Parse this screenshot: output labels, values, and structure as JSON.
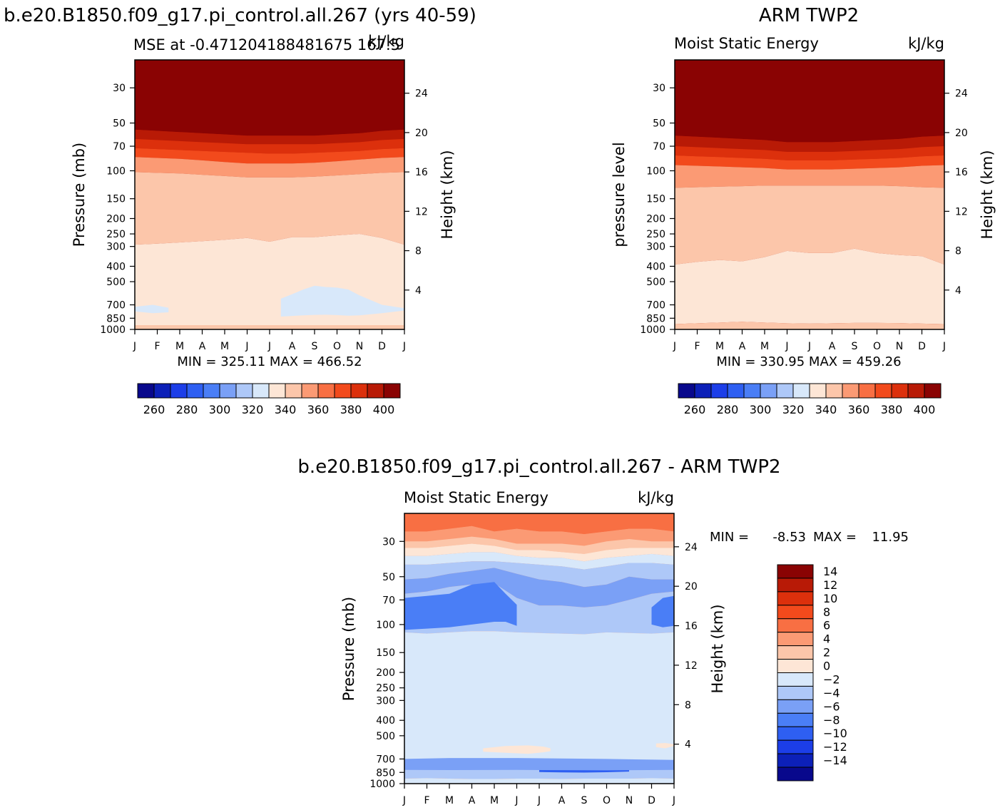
{
  "chart_data": [
    {
      "type": "heatmap",
      "title": "b.e20.B1850.f09_g17.pi_control.all.267 (yrs 40-59)",
      "subtitle_left": "MSE at -0.471204188481675 167.5",
      "subtitle_right": "kJ/kg",
      "ylabel": "Pressure (mb)",
      "ylabel_right": "Height (km)",
      "stats": "MIN = 325.11 MAX = 466.52",
      "months": [
        "J",
        "F",
        "M",
        "A",
        "M",
        "J",
        "J",
        "A",
        "S",
        "O",
        "N",
        "D",
        "J"
      ],
      "pressure_ticks": [
        "30",
        "50",
        "70",
        "100",
        "150",
        "200",
        "250",
        "300",
        "400",
        "500",
        "700",
        "850",
        "1000"
      ],
      "height_ticks": [
        "24",
        "20",
        "16",
        "12",
        "8",
        "4"
      ],
      "colorbar_ticks": [
        "260",
        "280",
        "300",
        "320",
        "340",
        "360",
        "380",
        "400"
      ],
      "colorbar_levels": [
        250,
        260,
        270,
        280,
        290,
        300,
        310,
        320,
        330,
        340,
        350,
        360,
        370,
        380,
        390,
        400,
        410
      ],
      "palette": [
        "#08088c",
        "#0c20b8",
        "#1c3ee8",
        "#2e5ff2",
        "#4a7ef6",
        "#7aa0f6",
        "#aec8f8",
        "#d8e8fa",
        "#fde6d6",
        "#fcc6aa",
        "#fb9a74",
        "#f86f43",
        "#f24a1c",
        "#dc300c",
        "#b81a06",
        "#8a0303"
      ],
      "bands": [
        {
          "name": "top",
          "p_lower": [
            55,
            56,
            57,
            58,
            59,
            60,
            60,
            60,
            60,
            59,
            58,
            56,
            55
          ]
        },
        {
          "name": "b2",
          "p_lower": [
            63,
            64,
            65,
            66,
            67,
            68,
            68,
            68,
            68,
            67,
            66,
            64,
            63
          ]
        },
        {
          "name": "b3",
          "p_lower": [
            72,
            73,
            74,
            75,
            76,
            77,
            78,
            78,
            77,
            76,
            75,
            73,
            72
          ]
        },
        {
          "name": "b4",
          "p_lower": [
            82,
            83,
            84,
            86,
            88,
            90,
            90,
            90,
            89,
            87,
            85,
            83,
            82
          ]
        },
        {
          "name": "b5",
          "p_lower": [
            102,
            103,
            104,
            106,
            108,
            110,
            110,
            110,
            109,
            107,
            105,
            103,
            102
          ]
        },
        {
          "name": "b6",
          "p_lower": [
            292,
            288,
            283,
            278,
            272,
            265,
            280,
            262,
            262,
            255,
            250,
            265,
            292
          ]
        },
        {
          "name": "b7",
          "p_lower": [
            940,
            940,
            940,
            940,
            940,
            940,
            940,
            940,
            940,
            940,
            940,
            940,
            940
          ]
        }
      ],
      "band_colors": [
        "#8a0303",
        "#b81a06",
        "#dc300c",
        "#f24a1c",
        "#fb9a74",
        "#fcc6aa",
        "#fde6d6"
      ],
      "patches": [
        {
          "color": "#d8e8fa",
          "top": [
            640,
            600,
            560,
            530,
            540,
            545,
            560,
            610,
            700,
            735
          ],
          "bottom": [
            830,
            822,
            815,
            810,
            808,
            812,
            820,
            815,
            790,
            760
          ],
          "t": [
            6.5,
            7.0,
            7.5,
            8.0,
            8.5,
            9.0,
            9.5,
            10.0,
            11.0,
            12.0
          ]
        },
        {
          "color": "#d8e8fa",
          "top": [
            720,
            700,
            730
          ],
          "bottom": [
            770,
            790,
            780
          ],
          "t": [
            0.0,
            0.8,
            1.5
          ]
        }
      ]
    },
    {
      "type": "heatmap",
      "title": "ARM TWP2",
      "subtitle_left": "Moist Static Energy",
      "subtitle_right": "kJ/kg",
      "ylabel": "pressure level",
      "ylabel_right": "Height (km)",
      "stats": "MIN = 330.95 MAX = 459.26",
      "months": [
        "J",
        "F",
        "M",
        "A",
        "M",
        "J",
        "J",
        "A",
        "S",
        "O",
        "N",
        "D",
        "J"
      ],
      "pressure_ticks": [
        "30",
        "50",
        "70",
        "100",
        "150",
        "200",
        "250",
        "300",
        "400",
        "500",
        "700",
        "850",
        "1000"
      ],
      "height_ticks": [
        "24",
        "20",
        "16",
        "12",
        "8",
        "4"
      ],
      "colorbar_ticks": [
        "260",
        "280",
        "300",
        "320",
        "340",
        "360",
        "380",
        "400"
      ],
      "colorbar_levels": [
        250,
        260,
        270,
        280,
        290,
        300,
        310,
        320,
        330,
        340,
        350,
        360,
        370,
        380,
        390,
        400,
        410
      ],
      "palette": [
        "#08088c",
        "#0c20b8",
        "#1c3ee8",
        "#2e5ff2",
        "#4a7ef6",
        "#7aa0f6",
        "#aec8f8",
        "#d8e8fa",
        "#fde6d6",
        "#fcc6aa",
        "#fb9a74",
        "#f86f43",
        "#f24a1c",
        "#dc300c",
        "#b81a06",
        "#8a0303"
      ],
      "bands": [
        {
          "name": "top",
          "p_lower": [
            60,
            61,
            62,
            63,
            64,
            66,
            66,
            66,
            65,
            64,
            63,
            61,
            60
          ]
        },
        {
          "name": "b2",
          "p_lower": [
            70,
            71,
            72,
            73,
            74,
            76,
            76,
            76,
            75,
            74,
            73,
            71,
            70
          ]
        },
        {
          "name": "b3",
          "p_lower": [
            80,
            81,
            82,
            83,
            84,
            86,
            86,
            86,
            85,
            84,
            83,
            81,
            80
          ]
        },
        {
          "name": "b4",
          "p_lower": [
            92,
            93,
            94,
            95,
            96,
            98,
            98,
            98,
            97,
            96,
            95,
            93,
            92
          ]
        },
        {
          "name": "b5",
          "p_lower": [
            128,
            127,
            126,
            125,
            124,
            124,
            124,
            124,
            124,
            124,
            125,
            127,
            128
          ]
        },
        {
          "name": "b6",
          "p_lower": [
            390,
            375,
            365,
            372,
            350,
            320,
            330,
            330,
            310,
            330,
            340,
            345,
            390
          ]
        },
        {
          "name": "b7",
          "p_lower": [
            925,
            915,
            905,
            895,
            905,
            915,
            920,
            915,
            910,
            910,
            912,
            920,
            925
          ]
        }
      ],
      "band_colors": [
        "#8a0303",
        "#b81a06",
        "#dc300c",
        "#f24a1c",
        "#fb9a74",
        "#fcc6aa",
        "#fde6d6"
      ],
      "patches": []
    },
    {
      "type": "heatmap",
      "title": "b.e20.B1850.f09_g17.pi_control.all.267 - ARM TWP2",
      "subtitle_left": "Moist Static Energy",
      "subtitle_right": "kJ/kg",
      "ylabel": "Pressure (mb)",
      "ylabel_right": "Height (km)",
      "stats": "MIN = -8.53 MAX = 11.95",
      "stats_min_label": "MIN =",
      "stats_min": "-8.53",
      "stats_max_label": "MAX =",
      "stats_max": "11.95",
      "months": [
        "J",
        "F",
        "M",
        "A",
        "M",
        "J",
        "J",
        "A",
        "S",
        "O",
        "N",
        "D",
        "J"
      ],
      "pressure_ticks": [
        "30",
        "50",
        "70",
        "100",
        "150",
        "200",
        "250",
        "300",
        "400",
        "500",
        "700",
        "850",
        "1000"
      ],
      "height_ticks": [
        "24",
        "20",
        "16",
        "12",
        "8",
        "4"
      ],
      "colorbar_levels": [
        -14,
        -12,
        -10,
        -8,
        -6,
        -4,
        -2,
        0,
        2,
        4,
        6,
        8,
        10,
        12,
        14
      ],
      "colorbar_ticks": [
        "14",
        "12",
        "10",
        "8",
        "6",
        "4",
        "2",
        "0",
        "−2",
        "−4",
        "−6",
        "−8",
        "−10",
        "−12",
        "−14"
      ],
      "palette": [
        "#08088c",
        "#0c20b8",
        "#1c3ee8",
        "#2e5ff2",
        "#4a7ef6",
        "#7aa0f6",
        "#aec8f8",
        "#d8e8fa",
        "#fde6d6",
        "#fcc6aa",
        "#fb9a74",
        "#f86f43",
        "#f24a1c",
        "#dc300c",
        "#b81a06",
        "#8a0303"
      ],
      "bands": [
        {
          "name": "d1",
          "p_lower": [
            26,
            26,
            25,
            24,
            26,
            25,
            26,
            26,
            27,
            26,
            25,
            25,
            26
          ]
        },
        {
          "name": "d2",
          "p_lower": [
            30,
            30,
            29,
            28,
            29,
            31,
            31,
            31,
            32,
            30,
            29,
            30,
            30
          ]
        },
        {
          "name": "d3",
          "p_lower": [
            33,
            33,
            32,
            31,
            32,
            34,
            34,
            35,
            36,
            34,
            33,
            33,
            33
          ]
        },
        {
          "name": "d4",
          "p_lower": [
            37,
            37,
            36,
            35,
            35,
            37,
            38,
            38,
            40,
            38,
            37,
            36,
            37
          ]
        },
        {
          "name": "d5",
          "p_lower": [
            42,
            42,
            41,
            40,
            40,
            41,
            42,
            43,
            45,
            43,
            41,
            41,
            42
          ]
        },
        {
          "name": "d6",
          "p_lower": [
            52,
            51,
            48,
            46,
            44,
            48,
            52,
            54,
            58,
            56,
            50,
            52,
            52
          ]
        },
        {
          "name": "d7",
          "p_lower": [
            64,
            62,
            58,
            56,
            55,
            68,
            76,
            76,
            78,
            76,
            70,
            64,
            62
          ]
        },
        {
          "name": "d8",
          "p_lower": [
            112,
            114,
            112,
            110,
            110,
            112,
            113,
            114,
            115,
            112,
            113,
            114,
            112
          ]
        },
        {
          "name": "d9",
          "p_lower": [
            760,
            770,
            775,
            780,
            780,
            775,
            770,
            772,
            775,
            772,
            770,
            765,
            760
          ]
        },
        {
          "name": "d10",
          "p_lower": [
            930,
            925,
            930,
            935,
            935,
            930,
            930,
            935,
            930,
            930,
            930,
            925,
            930
          ]
        }
      ],
      "band_colors": [
        "#f86f43",
        "#fb9a74",
        "#fcc6aa",
        "#fde6d6",
        "#d8e8fa",
        "#aec8f8",
        "#7aa0f6",
        "#aec8f8",
        "#d8e8fa",
        "#aec8f8"
      ],
      "patches": [
        {
          "color": "#4a7ef6",
          "top": [
            68,
            66,
            64,
            56,
            54,
            64,
            75
          ],
          "bottom": [
            108,
            106,
            104,
            100,
            96,
            96,
            102
          ],
          "t": [
            0.0,
            1.0,
            2.0,
            3.0,
            4.0,
            4.5,
            5.0
          ]
        },
        {
          "color": "#4a7ef6",
          "top": [
            78,
            68,
            66
          ],
          "bottom": [
            100,
            104,
            102
          ],
          "t": [
            11.0,
            11.5,
            12.0
          ]
        },
        {
          "color": "#d8e8fa",
          "top": [
            180,
            160,
            150,
            175,
            220
          ],
          "bottom": [
            370,
            340,
            360,
            390,
            400
          ],
          "t": [
            1.0,
            1.5,
            2.0,
            2.6,
            3.0
          ]
        },
        {
          "color": "#d8e8fa",
          "top": [
            200,
            150,
            140,
            138,
            140,
            150,
            170,
            200,
            230
          ],
          "bottom": [
            420,
            450,
            460,
            470,
            460,
            440,
            400,
            400,
            420
          ],
          "t": [
            4.5,
            5.0,
            5.6,
            6.5,
            7.5,
            8.5,
            9.0,
            9.4,
            9.8
          ]
        },
        {
          "color": "#fde6d6",
          "top": [
            600,
            580,
            575,
            585,
            600
          ],
          "bottom": [
            630,
            640,
            650,
            635,
            625
          ],
          "t": [
            3.5,
            4.5,
            5.5,
            6.2,
            6.5
          ]
        },
        {
          "color": "#fde6d6",
          "top": [
            560,
            555,
            565
          ],
          "bottom": [
            590,
            600,
            580
          ],
          "t": [
            11.2,
            11.6,
            12.0
          ]
        },
        {
          "color": "#2e5ff2",
          "top": [
            820,
            812,
            810,
            812,
            822
          ],
          "bottom": [
            845,
            850,
            852,
            848,
            840
          ],
          "t": [
            6.0,
            7.0,
            8.0,
            9.0,
            10.0
          ]
        },
        {
          "color": "#7aa0f6",
          "top": [
            700,
            690,
            690,
            700,
            710
          ],
          "bottom": [
            820,
            822,
            820,
            825,
            820
          ],
          "t": [
            0.0,
            2.0,
            5.0,
            9.0,
            12.0
          ]
        }
      ]
    }
  ]
}
